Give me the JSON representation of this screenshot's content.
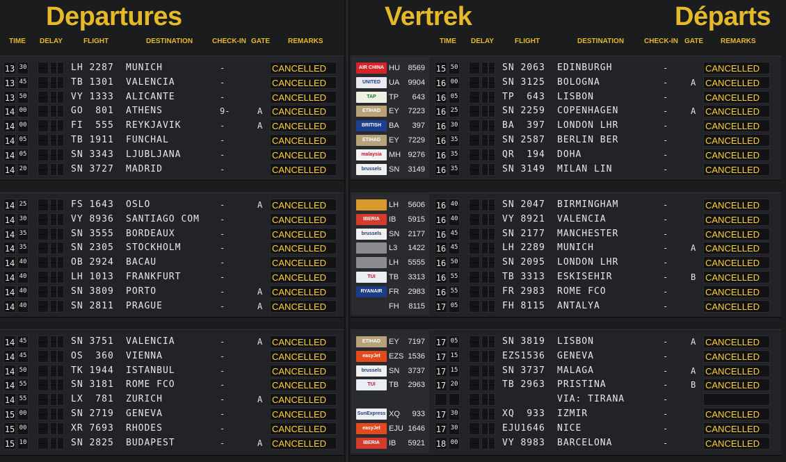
{
  "headers": {
    "departures": "Departures",
    "vertrek": "Vertrek",
    "departs": "Départs",
    "cols": {
      "time": "TIME",
      "delay": "DELAY",
      "flight": "FLIGHT",
      "destination": "DESTINATION",
      "checkin": "CHECK-IN",
      "gate": "GATE",
      "remarks": "REMARKS"
    }
  },
  "colors": {
    "accent": "#e6b92a",
    "cancelled": "#ffd22e",
    "board": "#1b1c1e"
  },
  "left_sections": [
    [
      {
        "hh": "13",
        "mm": "30",
        "flight": "LH 2287",
        "dest": "MUNICH",
        "checkin": "-",
        "gate": "",
        "remark": "CANCELLED"
      },
      {
        "hh": "13",
        "mm": "45",
        "flight": "TB 1301",
        "dest": "VALENCIA",
        "checkin": "-",
        "gate": "",
        "remark": "CANCELLED"
      },
      {
        "hh": "13",
        "mm": "50",
        "flight": "VY 1333",
        "dest": "ALICANTE",
        "checkin": "-",
        "gate": "",
        "remark": "CANCELLED"
      },
      {
        "hh": "14",
        "mm": "00",
        "flight": "GO  801",
        "dest": "ATHENS",
        "checkin": "9-",
        "gate": "A",
        "remark": "CANCELLED"
      },
      {
        "hh": "14",
        "mm": "00",
        "flight": "FI  555",
        "dest": "REYKJAVIK",
        "checkin": "-",
        "gate": "A",
        "remark": "CANCELLED"
      },
      {
        "hh": "14",
        "mm": "05",
        "flight": "TB 1911",
        "dest": "FUNCHAL",
        "checkin": "-",
        "gate": "",
        "remark": "CANCELLED"
      },
      {
        "hh": "14",
        "mm": "05",
        "flight": "SN 3343",
        "dest": "LJUBLJANA",
        "checkin": "-",
        "gate": "",
        "remark": "CANCELLED"
      },
      {
        "hh": "14",
        "mm": "20",
        "flight": "SN 3727",
        "dest": "MADRID",
        "checkin": "-",
        "gate": "",
        "remark": "CANCELLED"
      }
    ],
    [
      {
        "hh": "14",
        "mm": "25",
        "flight": "FS 1643",
        "dest": "OSLO",
        "checkin": "-",
        "gate": "A",
        "remark": "CANCELLED"
      },
      {
        "hh": "14",
        "mm": "30",
        "flight": "VY 8936",
        "dest": "SANTIAGO COM",
        "checkin": "-",
        "gate": "",
        "remark": "CANCELLED"
      },
      {
        "hh": "14",
        "mm": "35",
        "flight": "SN 3555",
        "dest": "BORDEAUX",
        "checkin": "-",
        "gate": "",
        "remark": "CANCELLED"
      },
      {
        "hh": "14",
        "mm": "35",
        "flight": "SN 2305",
        "dest": "STOCKHOLM",
        "checkin": "-",
        "gate": "",
        "remark": "CANCELLED"
      },
      {
        "hh": "14",
        "mm": "40",
        "flight": "OB 2924",
        "dest": "BACAU",
        "checkin": "-",
        "gate": "",
        "remark": "CANCELLED"
      },
      {
        "hh": "14",
        "mm": "40",
        "flight": "LH 1013",
        "dest": "FRANKFURT",
        "checkin": "-",
        "gate": "",
        "remark": "CANCELLED"
      },
      {
        "hh": "14",
        "mm": "40",
        "flight": "SN 3809",
        "dest": "PORTO",
        "checkin": "-",
        "gate": "A",
        "remark": "CANCELLED"
      },
      {
        "hh": "14",
        "mm": "40",
        "flight": "SN 2811",
        "dest": "PRAGUE",
        "checkin": "-",
        "gate": "A",
        "remark": "CANCELLED"
      }
    ],
    [
      {
        "hh": "14",
        "mm": "45",
        "flight": "SN 3751",
        "dest": "VALENCIA",
        "checkin": "-",
        "gate": "A",
        "remark": "CANCELLED"
      },
      {
        "hh": "14",
        "mm": "45",
        "flight": "OS  360",
        "dest": "VIENNA",
        "checkin": "-",
        "gate": "",
        "remark": "CANCELLED"
      },
      {
        "hh": "14",
        "mm": "50",
        "flight": "TK 1944",
        "dest": "ISTANBUL",
        "checkin": "-",
        "gate": "",
        "remark": "CANCELLED"
      },
      {
        "hh": "14",
        "mm": "55",
        "flight": "SN 3181",
        "dest": "ROME FCO",
        "checkin": "-",
        "gate": "",
        "remark": "CANCELLED"
      },
      {
        "hh": "14",
        "mm": "55",
        "flight": "LX  781",
        "dest": "ZURICH",
        "checkin": "-",
        "gate": "A",
        "remark": "CANCELLED"
      },
      {
        "hh": "15",
        "mm": "00",
        "flight": "SN 2719",
        "dest": "GENEVA",
        "checkin": "-",
        "gate": "",
        "remark": "CANCELLED"
      },
      {
        "hh": "15",
        "mm": "00",
        "flight": "XR 7693",
        "dest": "RHODES",
        "checkin": "-",
        "gate": "",
        "remark": "CANCELLED"
      },
      {
        "hh": "15",
        "mm": "10",
        "flight": "SN 2825",
        "dest": "BUDAPEST",
        "checkin": "-",
        "gate": "A",
        "remark": "CANCELLED"
      }
    ]
  ],
  "right_sections": [
    [
      {
        "logo": "air-china",
        "code": "HU",
        "cnum": "8569",
        "hh": "15",
        "mm": "50",
        "flight": "SN 2063",
        "dest": "EDINBURGH",
        "checkin": "-",
        "gate": "",
        "remark": "CANCELLED"
      },
      {
        "logo": "united",
        "code": "UA",
        "cnum": "9904",
        "hh": "16",
        "mm": "00",
        "flight": "SN 3125",
        "dest": "BOLOGNA",
        "checkin": "-",
        "gate": "A",
        "remark": "CANCELLED"
      },
      {
        "logo": "tap",
        "code": "TP",
        "cnum": "643",
        "hh": "16",
        "mm": "05",
        "flight": "TP  643",
        "dest": "LISBON",
        "checkin": "-",
        "gate": "",
        "remark": "CANCELLED"
      },
      {
        "logo": "etihad",
        "code": "EY",
        "cnum": "7223",
        "hh": "16",
        "mm": "25",
        "flight": "SN 2259",
        "dest": "COPENHAGEN",
        "checkin": "-",
        "gate": "A",
        "remark": "CANCELLED"
      },
      {
        "logo": "british-airways",
        "code": "BA",
        "cnum": "397",
        "hh": "16",
        "mm": "30",
        "flight": "BA  397",
        "dest": "LONDON LHR",
        "checkin": "-",
        "gate": "",
        "remark": "CANCELLED"
      },
      {
        "logo": "etihad",
        "code": "EY",
        "cnum": "7229",
        "hh": "16",
        "mm": "35",
        "flight": "SN 2587",
        "dest": "BERLIN BER",
        "checkin": "-",
        "gate": "",
        "remark": "CANCELLED"
      },
      {
        "logo": "malaysia",
        "code": "MH",
        "cnum": "9276",
        "hh": "16",
        "mm": "35",
        "flight": "QR  194",
        "dest": "DOHA",
        "checkin": "-",
        "gate": "",
        "remark": "CANCELLED"
      },
      {
        "logo": "brussels",
        "code": "SN",
        "cnum": "3149",
        "hh": "16",
        "mm": "35",
        "flight": "SN 3149",
        "dest": "MILAN LIN",
        "checkin": "-",
        "gate": "",
        "remark": "CANCELLED"
      }
    ],
    [
      {
        "logo": "lufthansa",
        "code": "LH",
        "cnum": "5606",
        "hh": "16",
        "mm": "40",
        "flight": "SN 2047",
        "dest": "BIRMINGHAM",
        "checkin": "-",
        "gate": "",
        "remark": "CANCELLED"
      },
      {
        "logo": "iberia",
        "code": "IB",
        "cnum": "5915",
        "hh": "16",
        "mm": "40",
        "flight": "VY 8921",
        "dest": "VALENCIA",
        "checkin": "-",
        "gate": "",
        "remark": "CANCELLED"
      },
      {
        "logo": "brussels",
        "code": "SN",
        "cnum": "2177",
        "hh": "16",
        "mm": "45",
        "flight": "SN 2177",
        "dest": "MANCHESTER",
        "checkin": "-",
        "gate": "",
        "remark": "CANCELLED"
      },
      {
        "logo": "blank",
        "code": "L3",
        "cnum": "1422",
        "hh": "16",
        "mm": "45",
        "flight": "LH 2289",
        "dest": "MUNICH",
        "checkin": "-",
        "gate": "A",
        "remark": "CANCELLED"
      },
      {
        "logo": "blank",
        "code": "LH",
        "cnum": "5555",
        "hh": "16",
        "mm": "50",
        "flight": "SN 2095",
        "dest": "LONDON LHR",
        "checkin": "-",
        "gate": "",
        "remark": "CANCELLED"
      },
      {
        "logo": "tui",
        "code": "TB",
        "cnum": "3313",
        "hh": "16",
        "mm": "55",
        "flight": "TB 3313",
        "dest": "ESKISEHIR",
        "checkin": "-",
        "gate": "B",
        "remark": "CANCELLED"
      },
      {
        "logo": "ryanair",
        "code": "FR",
        "cnum": "2983",
        "hh": "16",
        "mm": "55",
        "flight": "FR 2983",
        "dest": "ROME FCO",
        "checkin": "-",
        "gate": "",
        "remark": "CANCELLED"
      },
      {
        "logo": "none",
        "code": "FH",
        "cnum": "8115",
        "hh": "17",
        "mm": "05",
        "flight": "FH 8115",
        "dest": "ANTALYA",
        "checkin": "-",
        "gate": "",
        "remark": "CANCELLED"
      }
    ],
    [
      {
        "logo": "etihad",
        "code": "EY",
        "cnum": "7197",
        "hh": "17",
        "mm": "05",
        "flight": "SN 3819",
        "dest": "LISBON",
        "checkin": "-",
        "gate": "A",
        "remark": "CANCELLED"
      },
      {
        "logo": "easyjet",
        "code": "EZS",
        "cnum": "1536",
        "hh": "17",
        "mm": "15",
        "flight": "EZS1536",
        "dest": "GENEVA",
        "checkin": "-",
        "gate": "",
        "remark": "CANCELLED"
      },
      {
        "logo": "brussels",
        "code": "SN",
        "cnum": "3737",
        "hh": "17",
        "mm": "15",
        "flight": "SN 3737",
        "dest": "MALAGA",
        "checkin": "-",
        "gate": "A",
        "remark": "CANCELLED"
      },
      {
        "logo": "tui",
        "code": "TB",
        "cnum": "2963",
        "hh": "17",
        "mm": "20",
        "flight": "TB 2963",
        "dest": "PRISTINA",
        "checkin": "-",
        "gate": "B",
        "remark": "CANCELLED"
      },
      {
        "logo": "none",
        "code": "",
        "cnum": "",
        "hh": "",
        "mm": "",
        "flight": "",
        "dest": "VIA: TIRANA",
        "checkin": "-",
        "gate": "",
        "remark": ""
      },
      {
        "logo": "sunexpress",
        "code": "XQ",
        "cnum": "933",
        "hh": "17",
        "mm": "30",
        "flight": "XQ  933",
        "dest": "IZMIR",
        "checkin": "-",
        "gate": "",
        "remark": "CANCELLED"
      },
      {
        "logo": "easyjet",
        "code": "EJU",
        "cnum": "1646",
        "hh": "17",
        "mm": "30",
        "flight": "EJU1646",
        "dest": "NICE",
        "checkin": "-",
        "gate": "",
        "remark": "CANCELLED"
      },
      {
        "logo": "iberia",
        "code": "IB",
        "cnum": "5921",
        "hh": "18",
        "mm": "00",
        "flight": "VY 8983",
        "dest": "BARCELONA",
        "checkin": "-",
        "gate": "",
        "remark": "CANCELLED"
      }
    ]
  ]
}
